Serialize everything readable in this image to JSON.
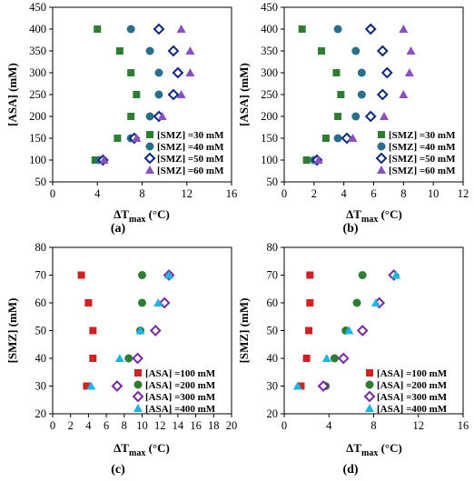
{
  "chart_data": [
    {
      "type": "scatter",
      "panel_label": "(a)",
      "xlabel": "ΔT",
      "xlabel_sub": "max",
      "xlabel_unit": " (°C)",
      "ylabel": "[ASA] (mM)",
      "xlim": [
        0,
        16
      ],
      "ylim": [
        50,
        450
      ],
      "xticks": [
        0,
        4,
        8,
        12,
        16
      ],
      "yticks": [
        150,
        250,
        350,
        450
      ],
      "ytick_labels": [
        "50",
        "100",
        "150",
        "200",
        "250",
        "300",
        "350",
        "400",
        "450"
      ],
      "ytick_values": [
        50,
        100,
        150,
        200,
        250,
        300,
        350,
        400,
        450
      ],
      "grid": false,
      "legend_position": "lower-right",
      "series": [
        {
          "name": "[SMZ] =30 mM",
          "marker": "square",
          "color": "#2e7d32",
          "points": [
            [
              4.0,
              400
            ],
            [
              6.0,
              350
            ],
            [
              7.0,
              300
            ],
            [
              7.5,
              250
            ],
            [
              7.0,
              200
            ],
            [
              5.8,
              150
            ],
            [
              3.8,
              100
            ]
          ]
        },
        {
          "name": "[SMZ] =40 mM",
          "marker": "circle",
          "color": "#2a6f8a",
          "points": [
            [
              7.0,
              400
            ],
            [
              8.7,
              350
            ],
            [
              9.5,
              300
            ],
            [
              9.5,
              250
            ],
            [
              8.7,
              200
            ],
            [
              7.0,
              150
            ],
            [
              4.2,
              100
            ]
          ]
        },
        {
          "name": "[SMZ] =50 mM",
          "marker": "diamond",
          "color": "#0d2a7a",
          "points": [
            [
              9.5,
              400
            ],
            [
              10.8,
              350
            ],
            [
              11.2,
              300
            ],
            [
              10.8,
              250
            ],
            [
              9.5,
              200
            ],
            [
              7.3,
              150
            ],
            [
              4.5,
              100
            ]
          ]
        },
        {
          "name": "[SMZ] =60 mM",
          "marker": "triangle",
          "color": "#8a4fc0",
          "points": [
            [
              11.5,
              400
            ],
            [
              12.3,
              350
            ],
            [
              12.3,
              300
            ],
            [
              11.5,
              250
            ],
            [
              9.8,
              200
            ],
            [
              7.5,
              150
            ],
            [
              4.6,
              100
            ]
          ]
        }
      ]
    },
    {
      "type": "scatter",
      "panel_label": "(b)",
      "xlabel": "ΔT",
      "xlabel_sub": "max",
      "xlabel_unit": " (°C)",
      "ylabel": "[ASA] (mM)",
      "xlim": [
        0,
        12
      ],
      "ylim": [
        50,
        450
      ],
      "xticks": [
        0,
        2,
        4,
        6,
        8,
        10,
        12
      ],
      "ytick_labels": [
        "50",
        "100",
        "150",
        "200",
        "250",
        "300",
        "350",
        "400",
        "450"
      ],
      "ytick_values": [
        50,
        100,
        150,
        200,
        250,
        300,
        350,
        400,
        450
      ],
      "grid": false,
      "legend_position": "lower-right",
      "series": [
        {
          "name": "[SMZ] =30 mM",
          "marker": "square",
          "color": "#2e7d32",
          "points": [
            [
              1.2,
              400
            ],
            [
              2.5,
              350
            ],
            [
              3.5,
              300
            ],
            [
              3.8,
              250
            ],
            [
              3.6,
              200
            ],
            [
              2.8,
              150
            ],
            [
              1.5,
              100
            ]
          ]
        },
        {
          "name": "[SMZ] =40 mM",
          "marker": "circle",
          "color": "#2a6f8a",
          "points": [
            [
              3.6,
              400
            ],
            [
              4.8,
              350
            ],
            [
              5.2,
              300
            ],
            [
              5.2,
              250
            ],
            [
              4.8,
              200
            ],
            [
              3.6,
              150
            ],
            [
              2.0,
              100
            ]
          ]
        },
        {
          "name": "[SMZ] =50 mM",
          "marker": "diamond",
          "color": "#0d2a7a",
          "points": [
            [
              5.8,
              400
            ],
            [
              6.6,
              350
            ],
            [
              6.9,
              300
            ],
            [
              6.6,
              250
            ],
            [
              5.8,
              200
            ],
            [
              4.2,
              150
            ],
            [
              2.2,
              100
            ]
          ]
        },
        {
          "name": "[SMZ] =60 mM",
          "marker": "triangle",
          "color": "#8a4fc0",
          "points": [
            [
              8.0,
              400
            ],
            [
              8.5,
              350
            ],
            [
              8.4,
              300
            ],
            [
              8.0,
              250
            ],
            [
              6.7,
              200
            ],
            [
              4.6,
              150
            ],
            [
              2.3,
              100
            ]
          ]
        }
      ]
    },
    {
      "type": "scatter",
      "panel_label": "(c)",
      "xlabel": "ΔT",
      "xlabel_sub": "max",
      "xlabel_unit": " (°C)",
      "ylabel": "[SMZ] (mM)",
      "xlim": [
        0,
        20
      ],
      "ylim": [
        20,
        80
      ],
      "xticks": [
        0,
        2,
        4,
        6,
        8,
        10,
        12,
        14,
        16,
        18,
        20
      ],
      "ytick_labels": [
        "20",
        "30",
        "40",
        "50",
        "60",
        "70",
        "80"
      ],
      "ytick_values": [
        20,
        30,
        40,
        50,
        60,
        70,
        80
      ],
      "grid": false,
      "legend_position": "lower-right",
      "series": [
        {
          "name": "[ASA] =100 mM",
          "marker": "square",
          "color": "#d32020",
          "points": [
            [
              3.2,
              70
            ],
            [
              4.0,
              60
            ],
            [
              4.5,
              50
            ],
            [
              4.5,
              40
            ],
            [
              3.8,
              30
            ]
          ]
        },
        {
          "name": "[ASA] =200 mM",
          "marker": "circle",
          "color": "#2e7d32",
          "points": [
            [
              10.0,
              70
            ],
            [
              10.0,
              60
            ],
            [
              9.8,
              50
            ],
            [
              8.5,
              40
            ],
            [
              7.2,
              30
            ]
          ]
        },
        {
          "name": "[ASA] =300 mM",
          "marker": "diamond",
          "color": "#7a2aa0",
          "points": [
            [
              13.0,
              70
            ],
            [
              12.5,
              60
            ],
            [
              11.5,
              50
            ],
            [
              9.5,
              40
            ],
            [
              7.2,
              30
            ]
          ]
        },
        {
          "name": "[ASA] =400 mM",
          "marker": "triangle",
          "color": "#1eb4e6",
          "points": [
            [
              13.0,
              70
            ],
            [
              11.8,
              60
            ],
            [
              9.8,
              50
            ],
            [
              7.5,
              40
            ],
            [
              4.3,
              30
            ]
          ]
        }
      ]
    },
    {
      "type": "scatter",
      "panel_label": "(d)",
      "xlabel": "ΔT",
      "xlabel_sub": "max",
      "xlabel_unit": " (°C)",
      "ylabel": "[SMZ] (mM)",
      "xlim": [
        0,
        16
      ],
      "ylim": [
        20,
        80
      ],
      "xticks": [
        0,
        4,
        8,
        12,
        16
      ],
      "ytick_labels": [
        "20",
        "30",
        "40",
        "50",
        "60",
        "70",
        "80"
      ],
      "ytick_values": [
        20,
        30,
        40,
        50,
        60,
        70,
        80
      ],
      "grid": false,
      "legend_position": "lower-right",
      "series": [
        {
          "name": "[ASA] =100 mM",
          "marker": "square",
          "color": "#d32020",
          "points": [
            [
              2.3,
              70
            ],
            [
              2.3,
              60
            ],
            [
              2.2,
              50
            ],
            [
              2.0,
              40
            ],
            [
              1.5,
              30
            ]
          ]
        },
        {
          "name": "[ASA] =200 mM",
          "marker": "circle",
          "color": "#2e7d32",
          "points": [
            [
              7.0,
              70
            ],
            [
              6.5,
              60
            ],
            [
              5.5,
              50
            ],
            [
              4.5,
              40
            ],
            [
              3.7,
              30
            ]
          ]
        },
        {
          "name": "[ASA] =300 mM",
          "marker": "diamond",
          "color": "#7a2aa0",
          "points": [
            [
              9.8,
              70
            ],
            [
              8.5,
              60
            ],
            [
              7.0,
              50
            ],
            [
              5.3,
              40
            ],
            [
              3.5,
              30
            ]
          ]
        },
        {
          "name": "[ASA] =400 mM",
          "marker": "triangle",
          "color": "#1eb4e6",
          "points": [
            [
              10.0,
              70
            ],
            [
              8.2,
              60
            ],
            [
              5.8,
              50
            ],
            [
              3.8,
              40
            ],
            [
              1.2,
              30
            ]
          ]
        }
      ]
    }
  ]
}
